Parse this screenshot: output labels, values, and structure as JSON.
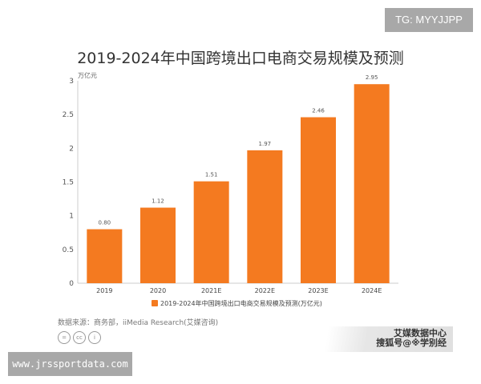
{
  "watermark_top": "TG: MYYJJPP",
  "watermark_bottom": "www.jrssportdata.com",
  "source": "数据来源：商务部，iiMedia Research(艾媒咨询)",
  "logo": {
    "line1": "艾媒数据中心",
    "line2": "搜狐号@※学别经"
  },
  "license_icons": [
    "nd-icon",
    "cc-icon",
    "by-icon"
  ],
  "license_labels": [
    "=",
    "cc",
    "i"
  ],
  "chart_data": {
    "type": "bar",
    "title": "2019-2024年中国跨境出口电商交易规模及预测",
    "ylabel": "万亿元",
    "xlabel": "",
    "categories": [
      "2019",
      "2020",
      "2021E",
      "2022E",
      "2023E",
      "2024E"
    ],
    "series": [
      {
        "name": "2019-2024年中国跨境出口电商交易规模及预测(万亿元)",
        "values": [
          0.8,
          1.12,
          1.51,
          1.97,
          2.46,
          2.95
        ]
      }
    ],
    "data_labels": [
      "0.80",
      "1.12",
      "1.51",
      "1.97",
      "2.46",
      "2.95"
    ],
    "ylim": [
      0,
      3
    ],
    "yticks": [
      "0",
      "0.5",
      "1",
      "1.5",
      "2",
      "2.5",
      "3"
    ],
    "grid": false,
    "legend_position": "bottom",
    "colors": {
      "bar": "#f47a20"
    }
  }
}
